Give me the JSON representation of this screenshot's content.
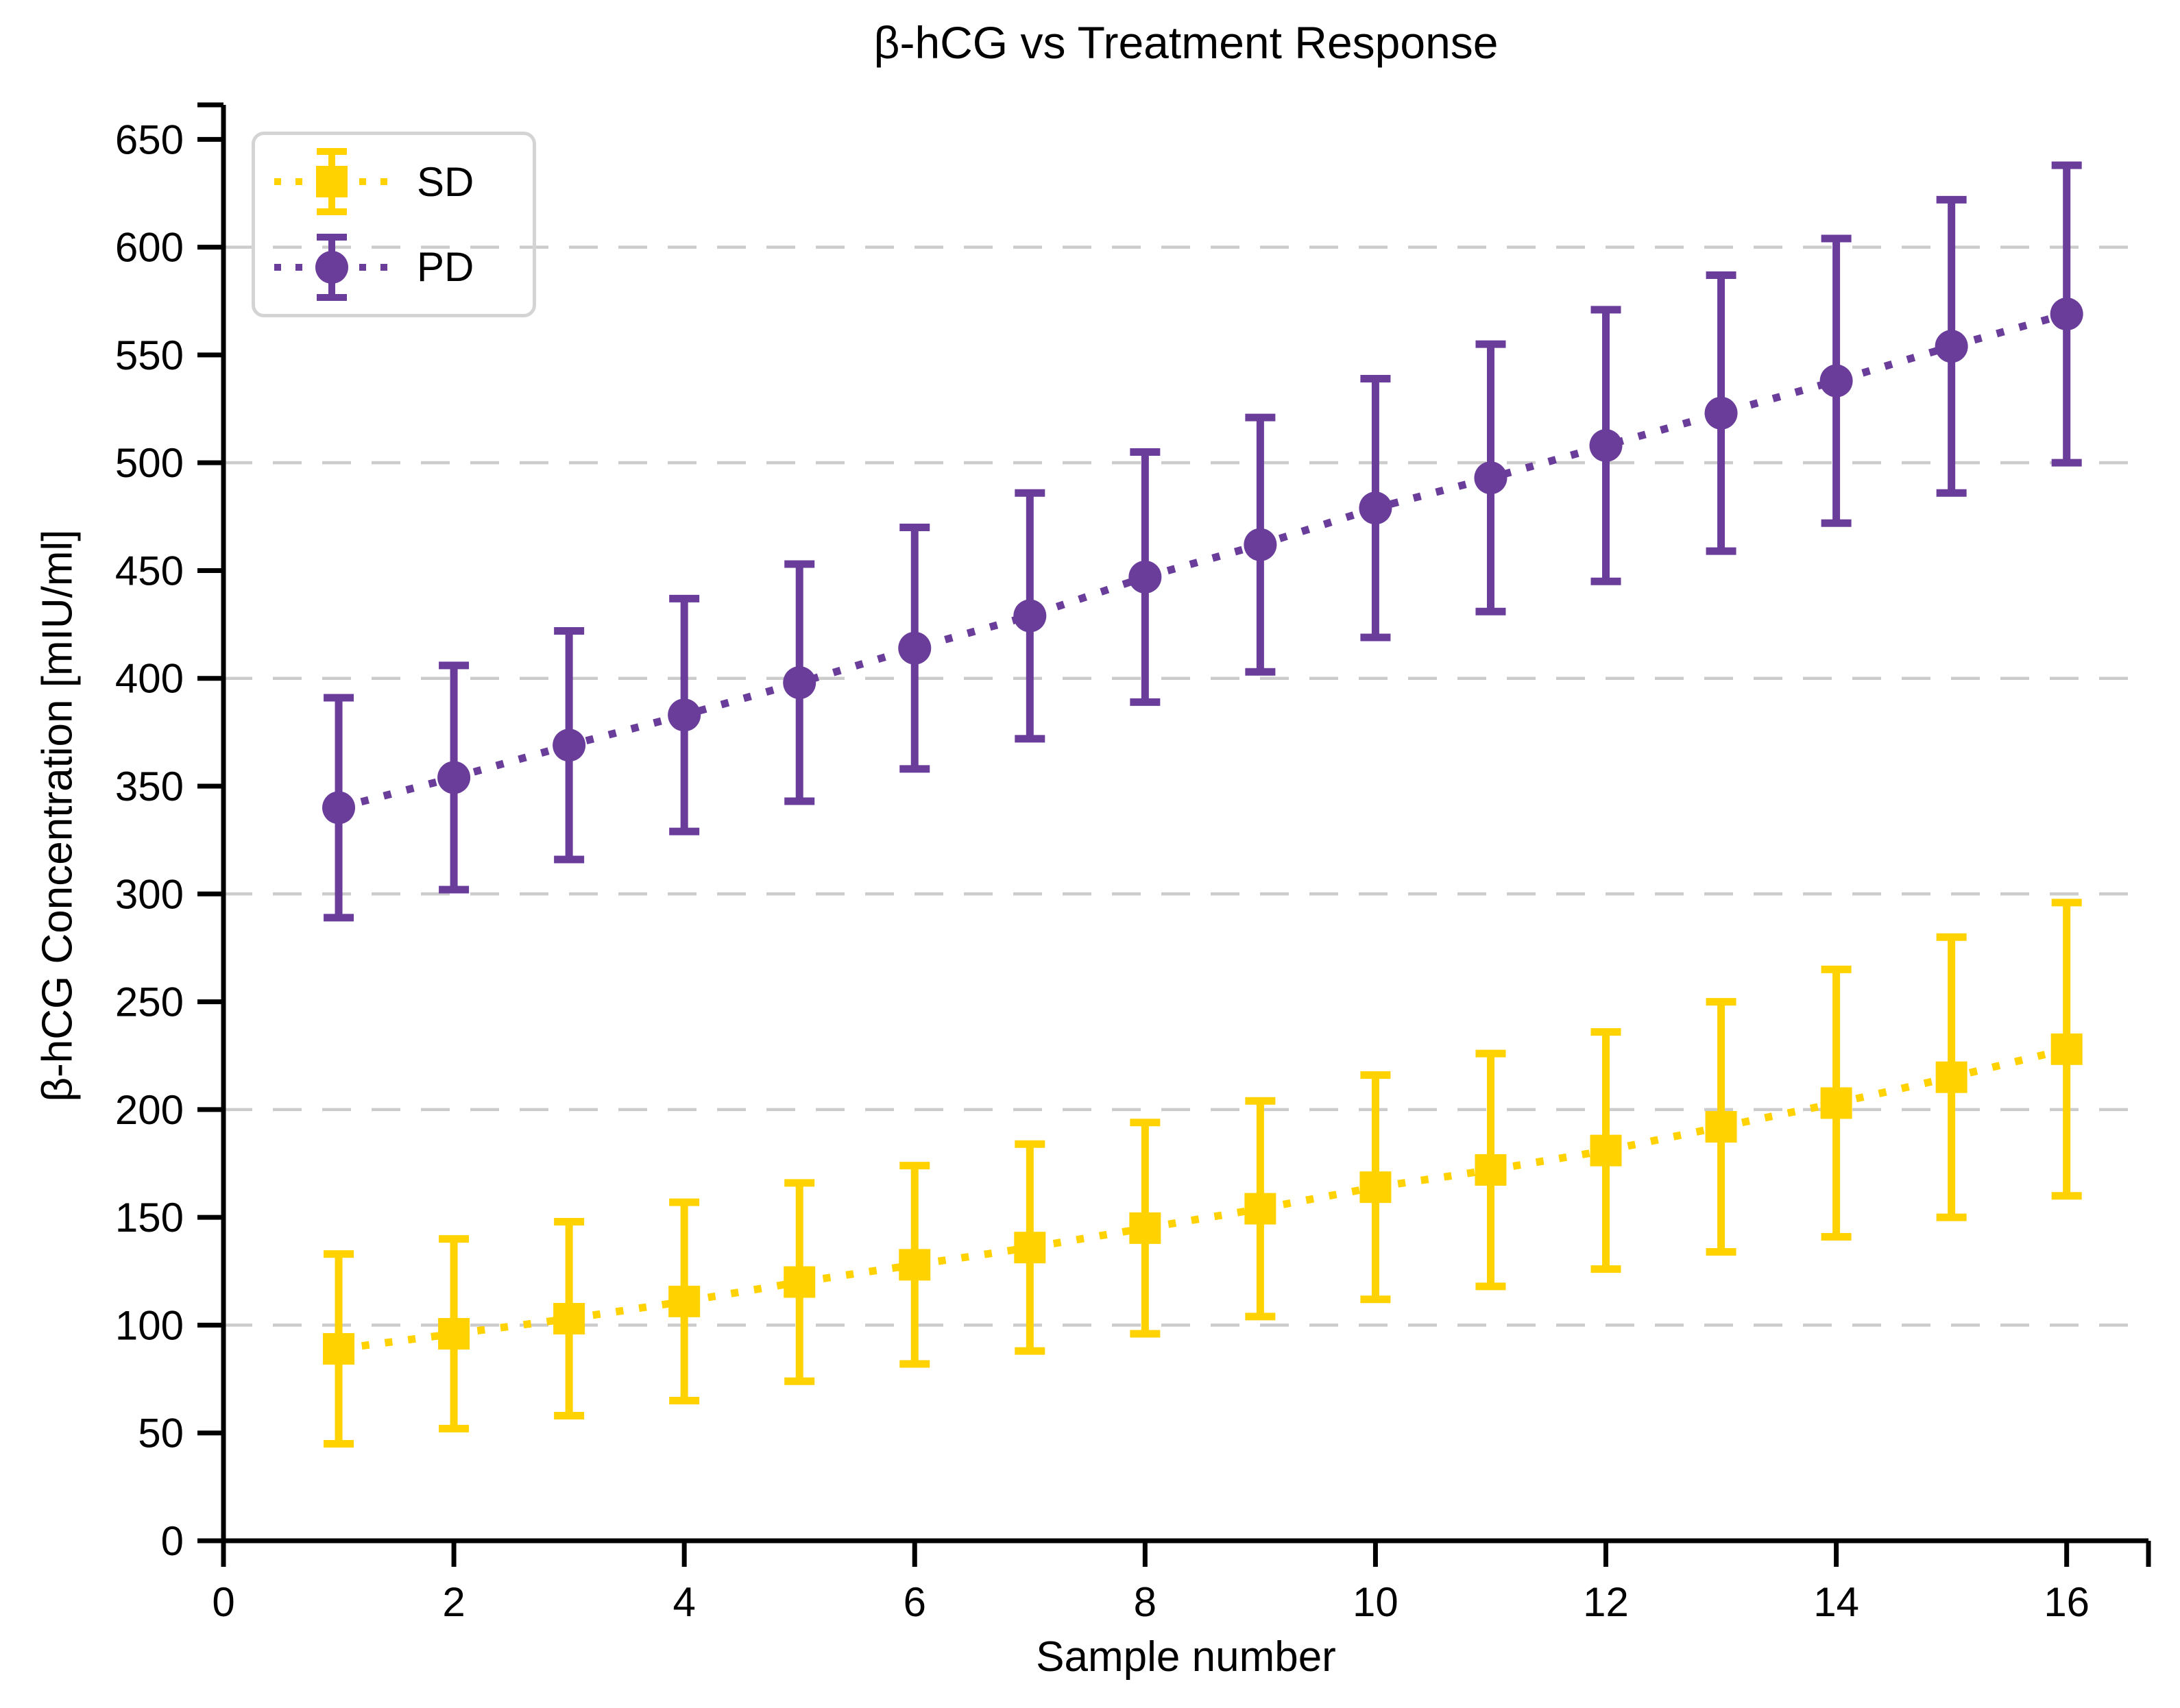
{
  "chart_data": {
    "type": "line",
    "title": "β-hCG vs Treatment Response",
    "xlabel": "Sample number",
    "ylabel": "β-hCG Concentration [mIU/ml]",
    "x": [
      1,
      2,
      3,
      4,
      5,
      6,
      7,
      8,
      9,
      10,
      11,
      12,
      13,
      14,
      15,
      16
    ],
    "series": [
      {
        "name": "SD",
        "color": "#FFD200",
        "marker": "square",
        "line_style": "dotted",
        "values": [
          89,
          96,
          103,
          111,
          120,
          128,
          136,
          145,
          154,
          164,
          172,
          181,
          192,
          203,
          215,
          228
        ],
        "errors": [
          44,
          44,
          45,
          46,
          46,
          46,
          48,
          49,
          50,
          52,
          54,
          55,
          58,
          62,
          65,
          68
        ]
      },
      {
        "name": "PD",
        "color": "#6A3D9A",
        "marker": "circle",
        "line_style": "dotted",
        "values": [
          340,
          354,
          369,
          383,
          398,
          414,
          429,
          447,
          462,
          479,
          493,
          508,
          523,
          538,
          554,
          569
        ],
        "errors": [
          51,
          52,
          53,
          54,
          55,
          56,
          57,
          58,
          59,
          60,
          62,
          63,
          64,
          66,
          68,
          69
        ]
      }
    ],
    "xlim": [
      0,
      16.71
    ],
    "ylim": [
      0,
      666
    ],
    "xticks": [
      0,
      2,
      4,
      6,
      8,
      10,
      12,
      14,
      16
    ],
    "yticks": [
      0,
      50,
      100,
      150,
      200,
      250,
      300,
      350,
      400,
      450,
      500,
      550,
      600,
      650
    ],
    "gridlines_y": [
      100,
      200,
      300,
      400,
      500,
      600
    ],
    "grid_color": "#CCCCCC",
    "axis_color": "#000000",
    "grid_on": true,
    "legend_position": "upper left"
  }
}
